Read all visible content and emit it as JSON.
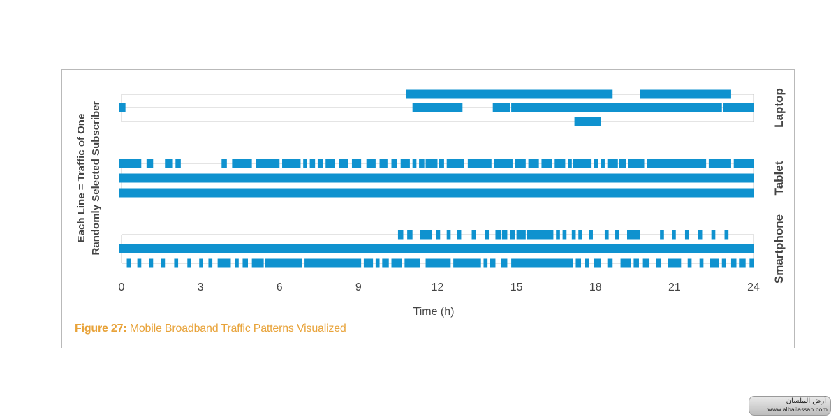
{
  "caption": {
    "label": "Figure 27:",
    "text": "Mobile Broadband Traffic Patterns Visualized"
  },
  "colors": {
    "bar": "#0f92cf",
    "rail": "#c8c8c8",
    "text": "#444444",
    "caption": "#e8a33a"
  },
  "watermark": {
    "line1": "أرض البيلسان",
    "line2": "www.albailassan.com"
  },
  "chart_data": {
    "type": "timeline",
    "title": "",
    "xlabel": "Time (h)",
    "ylabel_line1": "Each Line = Traffic of One",
    "ylabel_line2": "Randomly Selected Subscriber",
    "xlim": [
      0,
      24
    ],
    "xticks": [
      0,
      3,
      6,
      9,
      12,
      15,
      18,
      21,
      24
    ],
    "groups": [
      {
        "name": "Laptop",
        "lines": [
          {
            "segments": [
              [
                10.8,
                18.65
              ],
              [
                19.7,
                23.15
              ]
            ]
          },
          {
            "segments": [
              [
                -0.1,
                0.15
              ],
              [
                11.05,
                12.95
              ],
              [
                14.1,
                14.75
              ],
              [
                14.8,
                22.8
              ],
              [
                22.85,
                24.0
              ]
            ]
          },
          {
            "segments": [
              [
                17.2,
                18.2
              ]
            ]
          }
        ]
      },
      {
        "name": "Tablet",
        "lines": [
          {
            "segments": [
              [
                -0.1,
                0.75
              ],
              [
                0.95,
                1.2
              ],
              [
                1.65,
                1.95
              ],
              [
                2.05,
                2.25
              ],
              [
                3.8,
                4.0
              ],
              [
                4.2,
                4.95
              ],
              [
                5.1,
                6.0
              ],
              [
                6.1,
                6.8
              ],
              [
                6.9,
                7.05
              ],
              [
                7.15,
                7.35
              ],
              [
                7.45,
                7.65
              ],
              [
                7.75,
                8.1
              ],
              [
                8.25,
                8.6
              ],
              [
                8.75,
                9.1
              ],
              [
                9.3,
                9.65
              ],
              [
                9.8,
                10.1
              ],
              [
                10.25,
                10.45
              ],
              [
                10.6,
                10.95
              ],
              [
                11.05,
                11.2
              ],
              [
                11.3,
                11.5
              ],
              [
                11.55,
                12.0
              ],
              [
                12.05,
                12.25
              ],
              [
                12.35,
                13.0
              ],
              [
                13.15,
                14.05
              ],
              [
                14.15,
                14.85
              ],
              [
                14.95,
                15.35
              ],
              [
                15.45,
                15.85
              ],
              [
                15.95,
                16.35
              ],
              [
                16.45,
                16.85
              ],
              [
                16.95,
                17.1
              ],
              [
                17.15,
                17.85
              ],
              [
                17.95,
                18.1
              ],
              [
                18.2,
                18.35
              ],
              [
                18.45,
                18.85
              ],
              [
                18.9,
                19.15
              ],
              [
                19.25,
                19.85
              ],
              [
                19.95,
                22.2
              ],
              [
                22.3,
                23.15
              ],
              [
                23.25,
                24.0
              ]
            ]
          },
          {
            "segments": [
              [
                -0.1,
                24.0
              ]
            ]
          },
          {
            "segments": [
              [
                -0.1,
                24.0
              ]
            ]
          }
        ]
      },
      {
        "name": "Smartphone",
        "lines": [
          {
            "segments": [
              [
                10.5,
                10.7
              ],
              [
                10.85,
                11.05
              ],
              [
                11.35,
                11.8
              ],
              [
                11.95,
                12.1
              ],
              [
                12.35,
                12.5
              ],
              [
                12.75,
                12.9
              ],
              [
                13.3,
                13.45
              ],
              [
                13.8,
                13.95
              ],
              [
                14.2,
                14.4
              ],
              [
                14.45,
                14.65
              ],
              [
                14.75,
                14.95
              ],
              [
                15.0,
                15.35
              ],
              [
                15.4,
                16.4
              ],
              [
                16.5,
                16.65
              ],
              [
                16.75,
                16.9
              ],
              [
                17.1,
                17.25
              ],
              [
                17.35,
                17.5
              ],
              [
                17.75,
                17.9
              ],
              [
                18.35,
                18.5
              ],
              [
                18.75,
                18.9
              ],
              [
                19.2,
                19.7
              ],
              [
                20.45,
                20.6
              ],
              [
                20.9,
                21.05
              ],
              [
                21.4,
                21.55
              ],
              [
                21.9,
                22.05
              ],
              [
                22.4,
                22.55
              ],
              [
                22.9,
                23.05
              ]
            ]
          },
          {
            "segments": [
              [
                -0.1,
                24.0
              ]
            ]
          },
          {
            "segments": [
              [
                0.2,
                0.35
              ],
              [
                0.6,
                0.75
              ],
              [
                1.05,
                1.2
              ],
              [
                1.5,
                1.65
              ],
              [
                2.0,
                2.15
              ],
              [
                2.5,
                2.65
              ],
              [
                2.95,
                3.1
              ],
              [
                3.3,
                3.45
              ],
              [
                3.65,
                4.15
              ],
              [
                4.3,
                4.45
              ],
              [
                4.6,
                4.8
              ],
              [
                4.95,
                5.4
              ],
              [
                5.45,
                6.85
              ],
              [
                6.95,
                9.1
              ],
              [
                9.2,
                9.55
              ],
              [
                9.65,
                9.8
              ],
              [
                9.9,
                10.15
              ],
              [
                10.25,
                10.65
              ],
              [
                10.75,
                11.35
              ],
              [
                11.55,
                12.5
              ],
              [
                12.6,
                13.65
              ],
              [
                13.75,
                13.9
              ],
              [
                14.0,
                14.2
              ],
              [
                14.4,
                14.65
              ],
              [
                14.8,
                17.15
              ],
              [
                17.25,
                17.45
              ],
              [
                17.6,
                17.75
              ],
              [
                17.95,
                18.2
              ],
              [
                18.45,
                18.65
              ],
              [
                18.95,
                19.35
              ],
              [
                19.45,
                19.65
              ],
              [
                19.8,
                20.05
              ],
              [
                20.3,
                20.5
              ],
              [
                20.75,
                21.25
              ],
              [
                21.5,
                21.65
              ],
              [
                21.95,
                22.1
              ],
              [
                22.35,
                22.7
              ],
              [
                22.8,
                22.95
              ],
              [
                23.15,
                23.35
              ],
              [
                23.45,
                23.7
              ],
              [
                23.85,
                24.0
              ]
            ]
          }
        ]
      }
    ]
  }
}
